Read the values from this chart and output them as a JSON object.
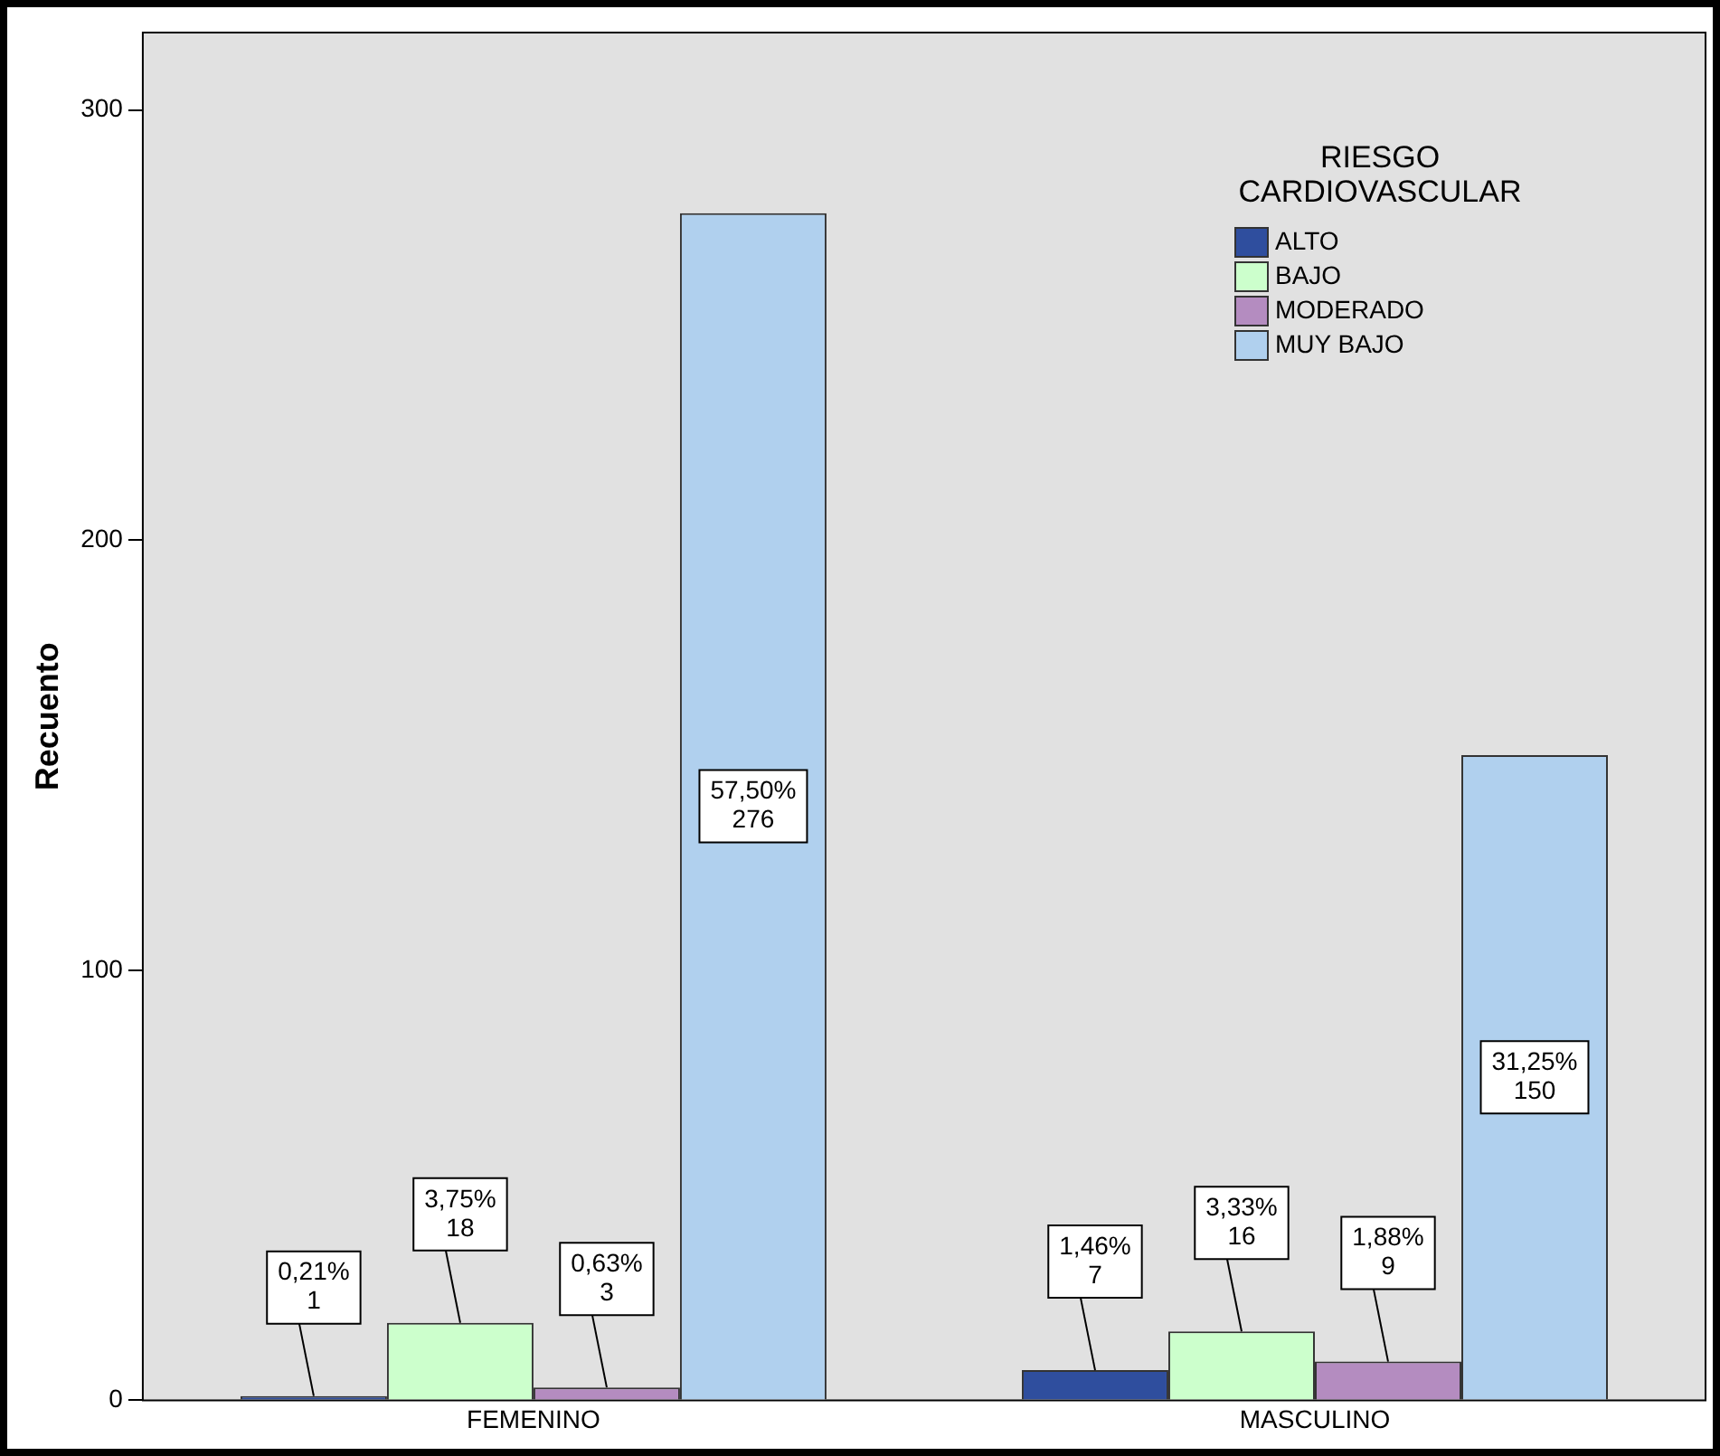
{
  "chart_data": {
    "type": "bar",
    "ylabel": "Recuento",
    "legend_title": "RIESGO\nCARDIOVASCULAR",
    "legend": "top right",
    "grid": false,
    "categories": [
      "FEMENINO",
      "MASCULINO"
    ],
    "ylim": [
      0,
      318
    ],
    "yticks": [
      0,
      100,
      200,
      300
    ],
    "series": [
      {
        "name": "ALTO",
        "color": "#2f4e9e",
        "values": [
          1,
          7
        ],
        "value_labels": [
          "0,21%\n1",
          "1,46%\n7"
        ]
      },
      {
        "name": "BAJO",
        "color": "#ccffcc",
        "values": [
          18,
          16
        ],
        "value_labels": [
          "3,75%\n18",
          "3,33%\n16"
        ]
      },
      {
        "name": "MODERADO",
        "color": "#b48cc0",
        "values": [
          3,
          9
        ],
        "value_labels": [
          "0,63%\n3",
          "1,88%\n9"
        ]
      },
      {
        "name": "MUY BAJO",
        "color": "#b0d0ee",
        "values": [
          276,
          150
        ],
        "value_labels": [
          "57,50%\n276",
          "31,25%\n150"
        ]
      }
    ]
  }
}
